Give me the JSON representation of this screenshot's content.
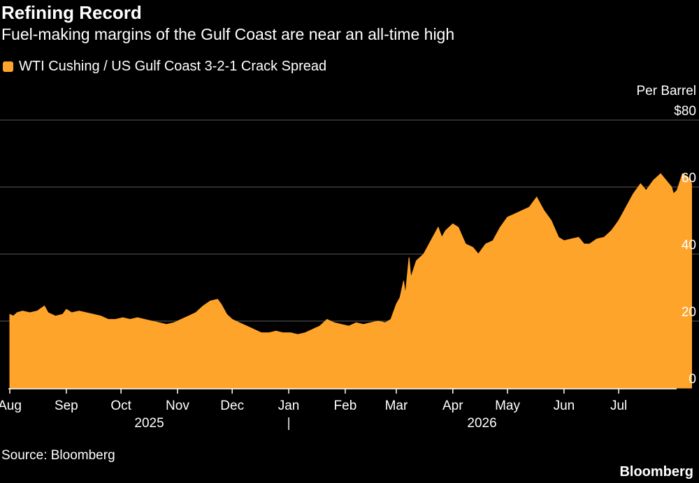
{
  "header": {
    "title": "Refining Record",
    "subtitle": "Fuel-making margins of the Gulf Coast are near an all-time high"
  },
  "legend": {
    "label": "WTI Cushing / US Gulf Coast 3-2-1 Crack Spread"
  },
  "footer": {
    "source": "Source: Bloomberg",
    "brand": "Bloomberg"
  },
  "colors": {
    "series": "#FFA42B",
    "background": "#000000",
    "grid": "#5a5a5a",
    "text": "#ffffff"
  },
  "chart_data": {
    "type": "area",
    "title": "Refining Record",
    "subtitle": "Fuel-making margins of the Gulf Coast are near an all-time high",
    "ylabel": "Per Barrel",
    "ylim": [
      0,
      80
    ],
    "y_ticks": [
      "$80",
      "60",
      "40",
      "20",
      "0"
    ],
    "y_tick_values": [
      80,
      60,
      40,
      20,
      0
    ],
    "x_ticks": [
      "Aug",
      "Sep",
      "Oct",
      "Nov",
      "Dec",
      "Jan",
      "Feb",
      "Mar",
      "Apr",
      "May",
      "Jun",
      "Jul"
    ],
    "x_tick_dates": [
      "2025-08-01",
      "2025-09-01",
      "2025-10-01",
      "2025-11-01",
      "2025-12-01",
      "2026-01-01",
      "2026-02-01",
      "2026-03-01",
      "2026-04-01",
      "2026-05-01",
      "2026-06-01",
      "2026-07-01"
    ],
    "year_labels": [
      "2025",
      "2026"
    ],
    "xlim": [
      "2025-08-01",
      "2026-08-01"
    ],
    "grid": true,
    "legend_position": "top-left",
    "series": [
      {
        "name": "WTI Cushing / US Gulf Coast 3-2-1 Crack Spread",
        "points": [
          [
            "2025-08-01",
            22
          ],
          [
            "2025-08-03",
            21.5
          ],
          [
            "2025-08-05",
            22.5
          ],
          [
            "2025-08-08",
            23
          ],
          [
            "2025-08-12",
            22.5
          ],
          [
            "2025-08-16",
            23
          ],
          [
            "2025-08-20",
            24.5
          ],
          [
            "2025-08-22",
            22.5
          ],
          [
            "2025-08-26",
            21.5
          ],
          [
            "2025-08-30",
            22
          ],
          [
            "2025-09-01",
            23.5
          ],
          [
            "2025-09-04",
            22.5
          ],
          [
            "2025-09-08",
            23
          ],
          [
            "2025-09-12",
            22.5
          ],
          [
            "2025-09-16",
            22
          ],
          [
            "2025-09-20",
            21.5
          ],
          [
            "2025-09-24",
            20.5
          ],
          [
            "2025-09-28",
            20.5
          ],
          [
            "2025-10-02",
            21
          ],
          [
            "2025-10-06",
            20.5
          ],
          [
            "2025-10-10",
            21
          ],
          [
            "2025-10-14",
            20.5
          ],
          [
            "2025-10-18",
            20
          ],
          [
            "2025-10-22",
            19.5
          ],
          [
            "2025-10-26",
            19
          ],
          [
            "2025-10-30",
            19.5
          ],
          [
            "2025-11-03",
            20.5
          ],
          [
            "2025-11-07",
            21.5
          ],
          [
            "2025-11-11",
            22.5
          ],
          [
            "2025-11-15",
            24.5
          ],
          [
            "2025-11-19",
            26
          ],
          [
            "2025-11-23",
            26.5
          ],
          [
            "2025-11-25",
            25
          ],
          [
            "2025-11-28",
            22
          ],
          [
            "2025-12-01",
            20.5
          ],
          [
            "2025-12-05",
            19.5
          ],
          [
            "2025-12-09",
            18.5
          ],
          [
            "2025-12-13",
            17.5
          ],
          [
            "2025-12-17",
            16.5
          ],
          [
            "2025-12-21",
            16.5
          ],
          [
            "2025-12-25",
            17
          ],
          [
            "2025-12-29",
            16.5
          ],
          [
            "2026-01-02",
            16.5
          ],
          [
            "2026-01-06",
            16
          ],
          [
            "2026-01-10",
            16.5
          ],
          [
            "2026-01-14",
            17.5
          ],
          [
            "2026-01-18",
            18.5
          ],
          [
            "2026-01-22",
            20.5
          ],
          [
            "2026-01-26",
            19.5
          ],
          [
            "2026-01-30",
            19
          ],
          [
            "2026-02-03",
            18.5
          ],
          [
            "2026-02-07",
            19.5
          ],
          [
            "2026-02-11",
            19
          ],
          [
            "2026-02-15",
            19.5
          ],
          [
            "2026-02-19",
            20
          ],
          [
            "2026-02-23",
            19.5
          ],
          [
            "2026-02-26",
            20.5
          ],
          [
            "2026-03-01",
            25
          ],
          [
            "2026-03-03",
            27
          ],
          [
            "2026-03-05",
            32
          ],
          [
            "2026-03-06",
            28
          ],
          [
            "2026-03-08",
            39
          ],
          [
            "2026-03-09",
            33
          ],
          [
            "2026-03-12",
            38
          ],
          [
            "2026-03-16",
            40
          ],
          [
            "2026-03-20",
            44
          ],
          [
            "2026-03-24",
            48
          ],
          [
            "2026-03-26",
            45
          ],
          [
            "2026-03-28",
            47
          ],
          [
            "2026-04-01",
            49
          ],
          [
            "2026-04-04",
            48
          ],
          [
            "2026-04-08",
            43
          ],
          [
            "2026-04-12",
            42
          ],
          [
            "2026-04-15",
            40
          ],
          [
            "2026-04-19",
            43
          ],
          [
            "2026-04-23",
            44
          ],
          [
            "2026-04-27",
            48
          ],
          [
            "2026-05-01",
            51
          ],
          [
            "2026-05-05",
            52
          ],
          [
            "2026-05-09",
            53
          ],
          [
            "2026-05-13",
            54
          ],
          [
            "2026-05-17",
            57
          ],
          [
            "2026-05-21",
            53
          ],
          [
            "2026-05-25",
            50
          ],
          [
            "2026-05-29",
            45
          ],
          [
            "2026-06-01",
            44
          ],
          [
            "2026-06-05",
            44.5
          ],
          [
            "2026-06-09",
            45
          ],
          [
            "2026-06-12",
            43
          ],
          [
            "2026-06-15",
            43
          ],
          [
            "2026-06-19",
            44.5
          ],
          [
            "2026-06-23",
            45
          ],
          [
            "2026-06-27",
            47
          ],
          [
            "2026-07-01",
            50
          ],
          [
            "2026-07-05",
            54
          ],
          [
            "2026-07-09",
            58
          ],
          [
            "2026-07-13",
            61
          ],
          [
            "2026-07-16",
            59
          ],
          [
            "2026-07-20",
            62
          ],
          [
            "2026-07-24",
            64
          ],
          [
            "2026-07-27",
            62
          ],
          [
            "2026-07-30",
            60
          ],
          [
            "2026-07-31",
            58
          ],
          [
            "2026-08-02",
            59
          ],
          [
            "2026-08-05",
            64
          ],
          [
            "2026-08-08",
            63
          ],
          [
            "2026-08-10",
            61
          ]
        ]
      }
    ]
  }
}
